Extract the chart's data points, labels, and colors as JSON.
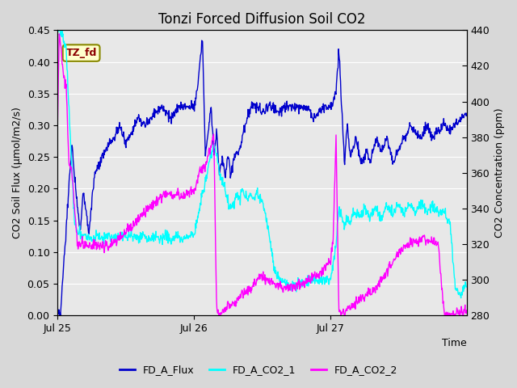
{
  "title": "Tonzi Forced Diffusion Soil CO2",
  "xlabel": "Time",
  "ylabel_left": "CO2 Soil Flux (μmol/m2/s)",
  "ylabel_right": "CO2 Concentration (ppm)",
  "ylim_left": [
    0.0,
    0.45
  ],
  "ylim_right": [
    280,
    440
  ],
  "yticks_left": [
    0.0,
    0.05,
    0.1,
    0.15,
    0.2,
    0.25,
    0.3,
    0.35,
    0.4,
    0.45
  ],
  "yticks_right": [
    280,
    300,
    320,
    340,
    360,
    380,
    400,
    420,
    440
  ],
  "xtick_labels": [
    "Jul 25",
    "Jul 26",
    "Jul 27"
  ],
  "color_flux": "#0000cc",
  "color_co2_1": "#00ffff",
  "color_co2_2": "#ff00ff",
  "legend_labels": [
    "FD_A_Flux",
    "FD_A_CO2_1",
    "FD_A_CO2_2"
  ],
  "annotation_text": "TZ_fd",
  "bg_color": "#e8e8e8",
  "grid_color": "#ffffff",
  "title_fontsize": 12,
  "label_fontsize": 9
}
